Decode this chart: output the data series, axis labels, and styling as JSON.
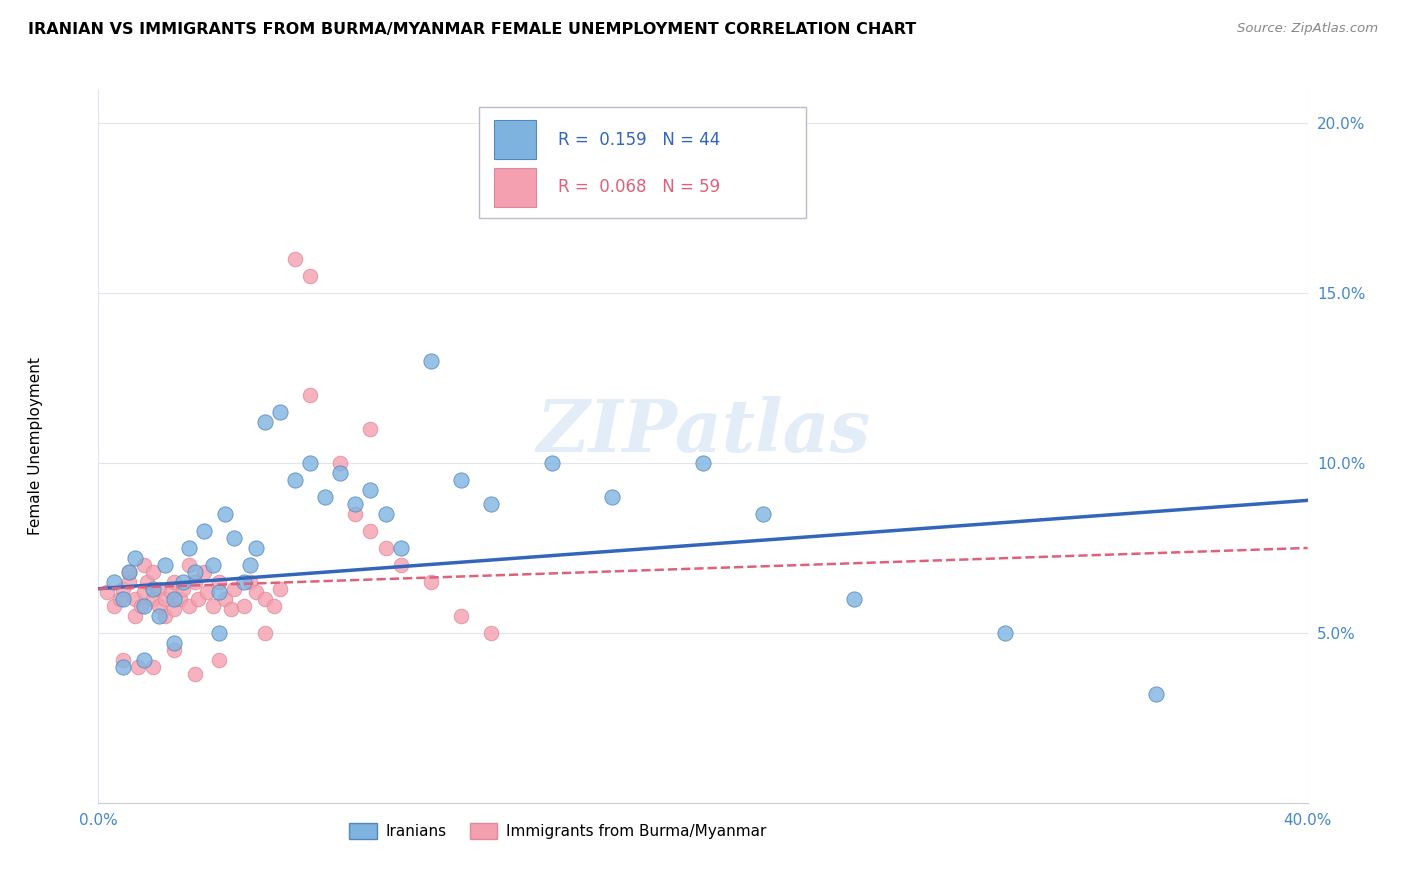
{
  "title": "IRANIAN VS IMMIGRANTS FROM BURMA/MYANMAR FEMALE UNEMPLOYMENT CORRELATION CHART",
  "source": "Source: ZipAtlas.com",
  "ylabel": "Female Unemployment",
  "xmin": 0.0,
  "xmax": 0.4,
  "ymin": 0.0,
  "ymax": 0.21,
  "yticks": [
    0.05,
    0.1,
    0.15,
    0.2
  ],
  "ytick_labels": [
    "5.0%",
    "10.0%",
    "15.0%",
    "20.0%"
  ],
  "xticks": [
    0.0,
    0.4
  ],
  "xtick_labels": [
    "0.0%",
    "40.0%"
  ],
  "legend1_R": "0.159",
  "legend1_N": "44",
  "legend2_R": "0.068",
  "legend2_N": "59",
  "color_blue": "#7EB3E0",
  "color_pink": "#F4A0B0",
  "color_blue_line": "#3366BB",
  "color_pink_line": "#E0607A",
  "watermark": "ZIPatlas",
  "blue_scatter_x": [
    0.005,
    0.008,
    0.01,
    0.012,
    0.015,
    0.018,
    0.02,
    0.022,
    0.025,
    0.028,
    0.03,
    0.032,
    0.035,
    0.038,
    0.04,
    0.042,
    0.045,
    0.048,
    0.05,
    0.052,
    0.055,
    0.06,
    0.065,
    0.07,
    0.075,
    0.08,
    0.085,
    0.09,
    0.095,
    0.1,
    0.11,
    0.12,
    0.13,
    0.15,
    0.17,
    0.2,
    0.22,
    0.25,
    0.3,
    0.35,
    0.008,
    0.015,
    0.025,
    0.04
  ],
  "blue_scatter_y": [
    0.065,
    0.06,
    0.068,
    0.072,
    0.058,
    0.063,
    0.055,
    0.07,
    0.06,
    0.065,
    0.075,
    0.068,
    0.08,
    0.07,
    0.062,
    0.085,
    0.078,
    0.065,
    0.07,
    0.075,
    0.112,
    0.115,
    0.095,
    0.1,
    0.09,
    0.097,
    0.088,
    0.092,
    0.085,
    0.075,
    0.13,
    0.095,
    0.088,
    0.1,
    0.09,
    0.1,
    0.085,
    0.06,
    0.05,
    0.032,
    0.04,
    0.042,
    0.047,
    0.05
  ],
  "pink_scatter_x": [
    0.003,
    0.005,
    0.007,
    0.008,
    0.01,
    0.01,
    0.012,
    0.012,
    0.014,
    0.015,
    0.015,
    0.016,
    0.018,
    0.018,
    0.02,
    0.02,
    0.022,
    0.022,
    0.024,
    0.025,
    0.025,
    0.027,
    0.028,
    0.03,
    0.03,
    0.032,
    0.033,
    0.035,
    0.036,
    0.038,
    0.04,
    0.042,
    0.044,
    0.045,
    0.048,
    0.05,
    0.052,
    0.055,
    0.058,
    0.06,
    0.065,
    0.07,
    0.08,
    0.085,
    0.09,
    0.095,
    0.1,
    0.11,
    0.12,
    0.13,
    0.008,
    0.013,
    0.018,
    0.025,
    0.032,
    0.04,
    0.055,
    0.07,
    0.09
  ],
  "pink_scatter_y": [
    0.062,
    0.058,
    0.06,
    0.063,
    0.065,
    0.068,
    0.06,
    0.055,
    0.058,
    0.062,
    0.07,
    0.065,
    0.06,
    0.068,
    0.058,
    0.063,
    0.055,
    0.06,
    0.062,
    0.057,
    0.065,
    0.06,
    0.063,
    0.058,
    0.07,
    0.065,
    0.06,
    0.068,
    0.062,
    0.058,
    0.065,
    0.06,
    0.057,
    0.063,
    0.058,
    0.065,
    0.062,
    0.06,
    0.058,
    0.063,
    0.16,
    0.155,
    0.1,
    0.085,
    0.08,
    0.075,
    0.07,
    0.065,
    0.055,
    0.05,
    0.042,
    0.04,
    0.04,
    0.045,
    0.038,
    0.042,
    0.05,
    0.12,
    0.11
  ],
  "blue_trend_x0": 0.0,
  "blue_trend_x1": 0.4,
  "blue_trend_y0": 0.063,
  "blue_trend_y1": 0.089,
  "pink_trend_x0": 0.0,
  "pink_trend_x1": 0.4,
  "pink_trend_y0": 0.063,
  "pink_trend_y1": 0.075
}
